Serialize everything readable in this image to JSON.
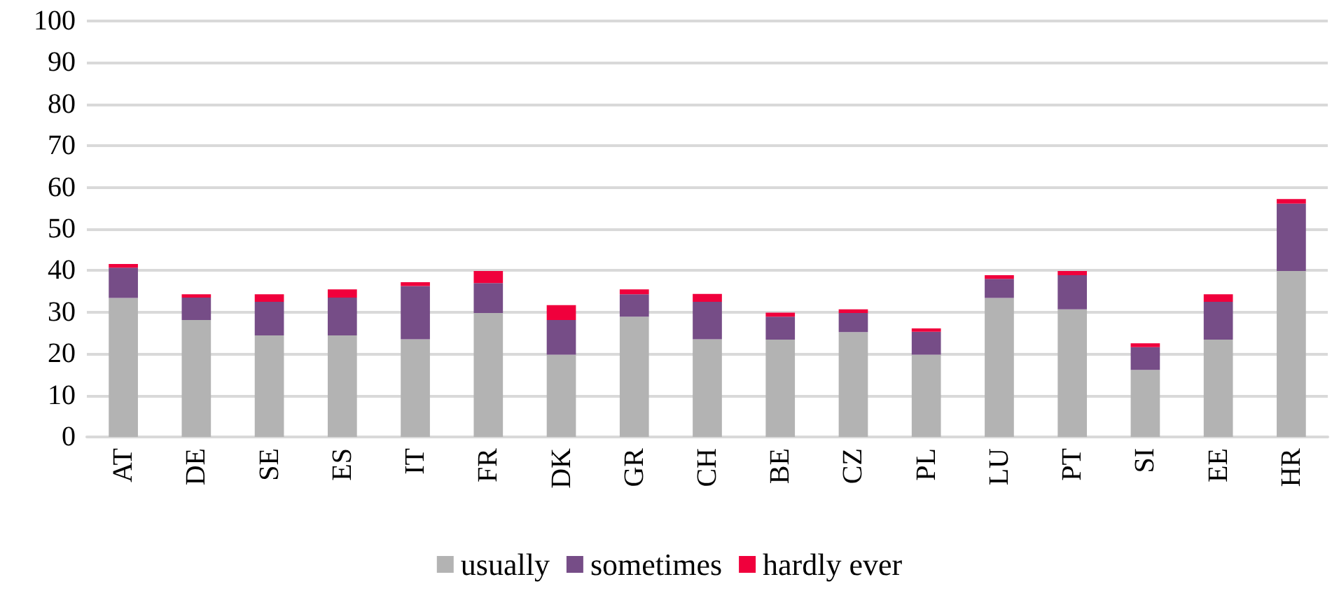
{
  "chart_data": {
    "type": "bar",
    "stacked": true,
    "categories": [
      "AT",
      "DE",
      "SE",
      "ES",
      "IT",
      "FR",
      "DK",
      "GR",
      "CH",
      "BE",
      "CZ",
      "PL",
      "LU",
      "PT",
      "SI",
      "EE",
      "HR"
    ],
    "series": [
      {
        "name": "usually",
        "color": "#b3b3b3",
        "values": [
          33.4,
          28.1,
          24.4,
          24.4,
          23.5,
          29.8,
          19.8,
          28.9,
          23.5,
          23.4,
          25.2,
          19.8,
          33.4,
          30.7,
          16.1,
          23.4,
          39.9
        ]
      },
      {
        "name": "sometimes",
        "color": "#764d87",
        "values": [
          7.3,
          5.4,
          8.1,
          9.1,
          12.8,
          7.2,
          8.3,
          5.4,
          9.0,
          5.5,
          4.6,
          5.5,
          4.6,
          8.2,
          5.5,
          9.1,
          16.2
        ]
      },
      {
        "name": "hardly ever",
        "color": "#f0003c",
        "values": [
          0.9,
          0.8,
          1.8,
          2.0,
          0.9,
          2.9,
          3.6,
          1.2,
          1.9,
          1.0,
          0.9,
          0.8,
          0.9,
          1.0,
          0.9,
          1.8,
          1.1
        ]
      }
    ],
    "ylim": [
      0,
      100
    ],
    "yticks": [
      0,
      10,
      20,
      30,
      40,
      50,
      60,
      70,
      80,
      90,
      100
    ],
    "grid": "y",
    "legend": "bottom"
  }
}
